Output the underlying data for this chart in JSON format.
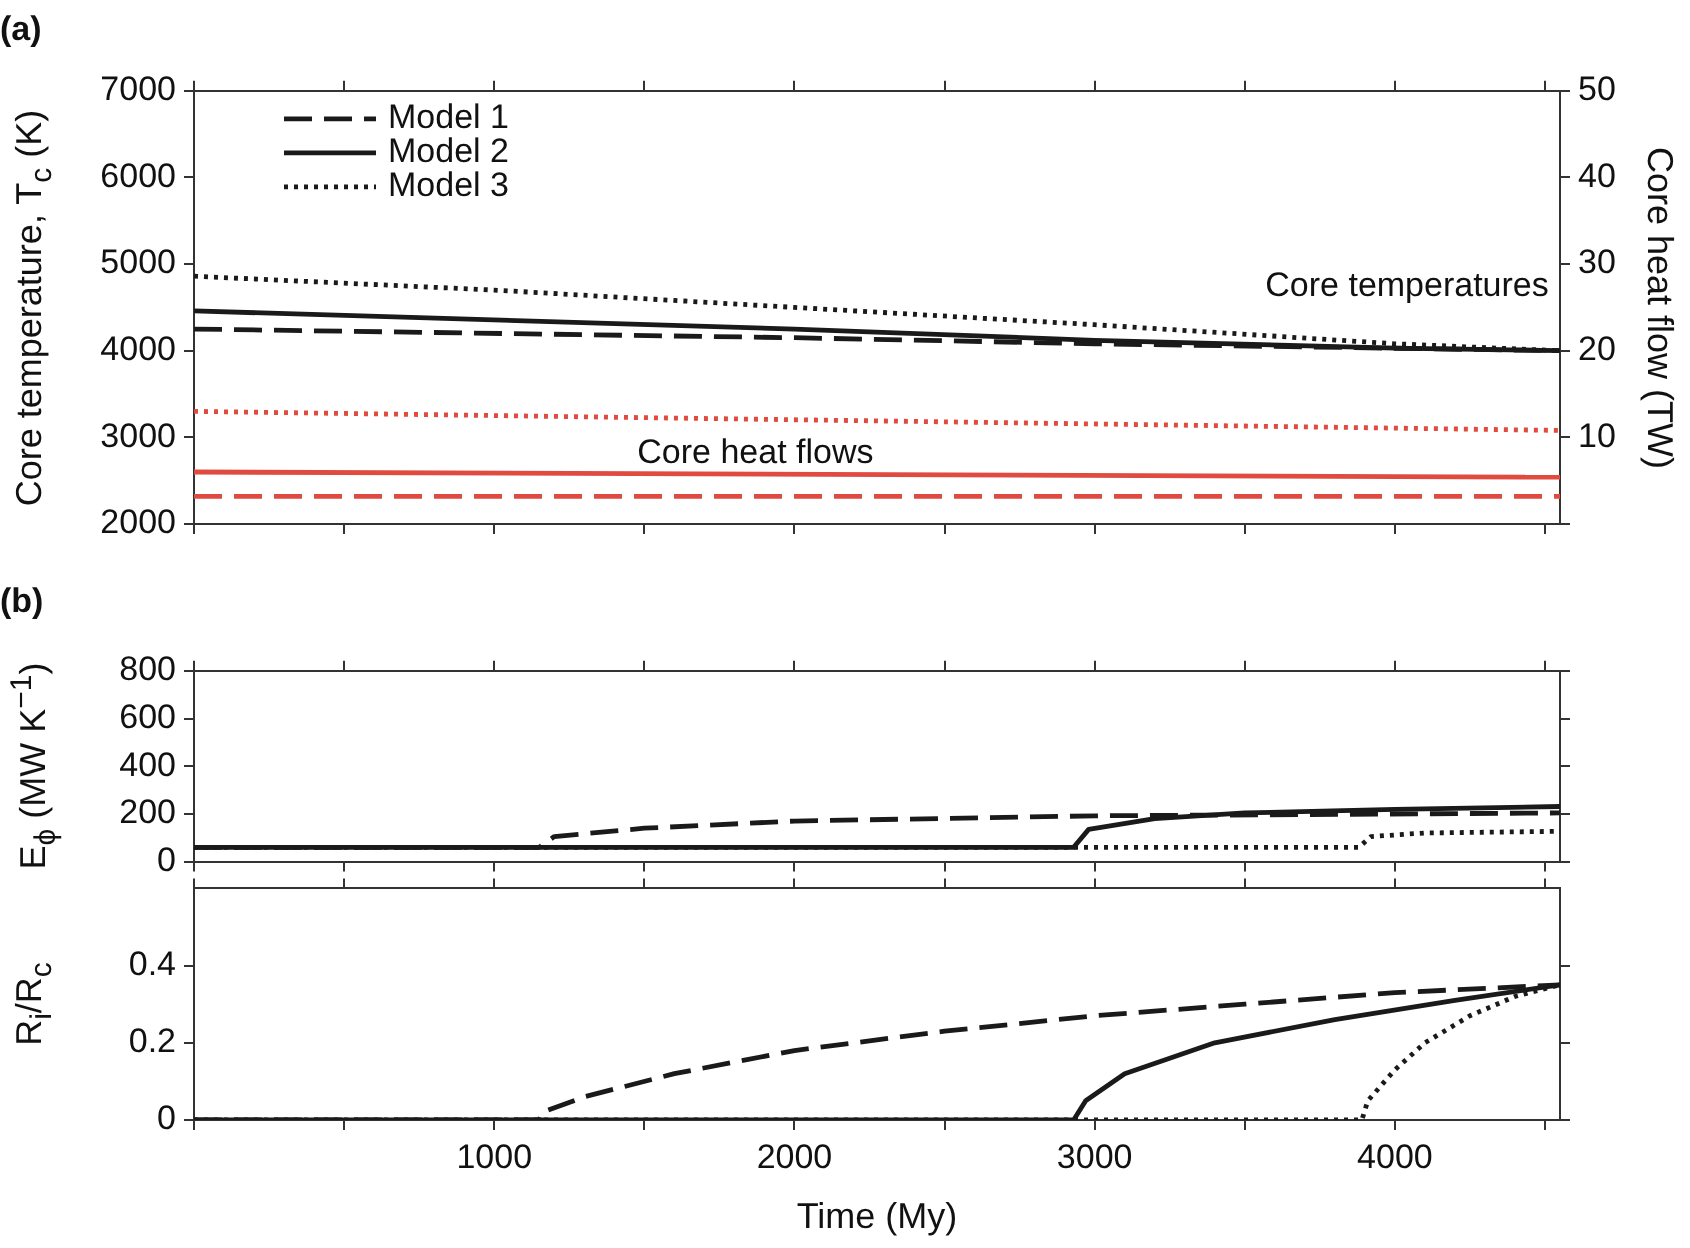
{
  "chart_data": [
    {
      "type": "line",
      "title": "(a)",
      "ylabel": "Core temperature, T$_{c}$ (K)",
      "y2label": "Core heat flow (TW)",
      "tick_labels": "y",
      "xlim": [
        0,
        4550
      ],
      "xticks": [
        {
          "value": 0,
          "label": null
        },
        {
          "value": 500,
          "label": null
        },
        1000,
        {
          "value": 1500,
          "label": null
        },
        2000,
        {
          "value": 2500,
          "label": null
        },
        3000,
        {
          "value": 3500,
          "label": null
        },
        4000,
        {
          "value": 4500,
          "label": null
        }
      ],
      "ylim": [
        2000,
        7000
      ],
      "yticks": [
        2000,
        3000,
        4000,
        5000,
        6000,
        7000
      ],
      "y2lim": [
        0,
        50
      ],
      "y2ticks": [
        {
          "value": 0,
          "label": null
        },
        10,
        20,
        30,
        40,
        50
      ],
      "legend": "top left",
      "marker": "none",
      "grid": false,
      "annotations": [
        "Core temperatures",
        "Core heat flows"
      ],
      "series": [
        {
          "name": "Model 1",
          "color": "#1a1a1a",
          "line_style": "dashed",
          "x": [
            0,
            2000,
            3000,
            4550
          ],
          "values": [
            4250,
            4150,
            4080,
            4000
          ]
        },
        {
          "name": "Model 2",
          "color": "#1a1a1a",
          "line_style": "solid",
          "x": [
            0,
            2000,
            3000,
            4000,
            4550
          ],
          "values": [
            4460,
            4250,
            4120,
            4030,
            4000
          ]
        },
        {
          "name": "Model 3",
          "color": "#1a1a1a",
          "line_style": "dotted",
          "x": [
            0,
            1000,
            2000,
            3000,
            4000,
            4550
          ],
          "values": [
            4860,
            4700,
            4500,
            4300,
            4080,
            4000
          ]
        },
        {
          "color": "#e04a3f",
          "line_style": "dashed",
          "axis": "y2",
          "x": [
            0,
            4550
          ],
          "values": [
            3.2,
            3.2
          ]
        },
        {
          "color": "#e04a3f",
          "line_style": "solid",
          "axis": "y2",
          "x": [
            0,
            4550
          ],
          "values": [
            6.0,
            5.4
          ]
        },
        {
          "color": "#e04a3f",
          "line_style": "dotted",
          "axis": "y2",
          "x": [
            0,
            4550
          ],
          "values": [
            13.0,
            10.8
          ]
        }
      ]
    },
    {
      "type": "line",
      "title": "(b)",
      "ylabel": "E$_{ϕ}$ (MW K$^{−1}$)",
      "tick_labels": "y",
      "xlim": [
        0,
        4550
      ],
      "xticks": [
        {
          "value": 0,
          "label": null
        },
        {
          "value": 500,
          "label": null
        },
        1000,
        {
          "value": 1500,
          "label": null
        },
        2000,
        {
          "value": 2500,
          "label": null
        },
        3000,
        {
          "value": 3500,
          "label": null
        },
        4000,
        {
          "value": 4500,
          "label": null
        }
      ],
      "ylim": [
        0,
        800
      ],
      "yticks": [
        0,
        200,
        400,
        600,
        800
      ],
      "marker": "none",
      "grid": false,
      "series": [
        {
          "color": "#1a1a1a",
          "line_style": "dashed",
          "x": [
            0,
            1150,
            1200,
            1500,
            2000,
            3000,
            4550
          ],
          "values": [
            60,
            60,
            105,
            140,
            170,
            192,
            204
          ]
        },
        {
          "color": "#1a1a1a",
          "line_style": "solid",
          "x": [
            0,
            2930,
            2980,
            3200,
            3500,
            4000,
            4550
          ],
          "values": [
            60,
            60,
            135,
            180,
            204,
            219,
            231
          ]
        },
        {
          "color": "#1a1a1a",
          "line_style": "dotted",
          "x": [
            0,
            3880,
            3920,
            4100,
            4550
          ],
          "values": [
            60,
            60,
            105,
            120,
            127
          ]
        }
      ]
    },
    {
      "type": "line",
      "ylabel": "R$_{i}$/R$_{c}$",
      "xlabel": "Time (My)",
      "xlim": [
        0,
        4550
      ],
      "xticks": [
        {
          "value": 0,
          "label": null
        },
        {
          "value": 500,
          "label": null
        },
        1000,
        {
          "value": 1500,
          "label": null
        },
        2000,
        {
          "value": 2500,
          "label": null
        },
        3000,
        {
          "value": 3500,
          "label": null
        },
        4000,
        {
          "value": 4500,
          "label": null
        }
      ],
      "ylim": [
        0,
        0.6
      ],
      "yticks": [
        0,
        0.2,
        0.4
      ],
      "marker": "none",
      "grid": false,
      "series": [
        {
          "color": "#1a1a1a",
          "line_style": "dashed",
          "x": [
            0,
            1150,
            1160,
            1300,
            1600,
            2000,
            2500,
            3000,
            3500,
            4000,
            4550
          ],
          "values": [
            0,
            0,
            0.02,
            0.06,
            0.12,
            0.18,
            0.23,
            0.27,
            0.3,
            0.33,
            0.35
          ]
        },
        {
          "color": "#1a1a1a",
          "line_style": "solid",
          "x": [
            0,
            2930,
            2970,
            3100,
            3400,
            3800,
            4200,
            4550
          ],
          "values": [
            0,
            0,
            0.05,
            0.12,
            0.2,
            0.26,
            0.31,
            0.35
          ]
        },
        {
          "color": "#1a1a1a",
          "line_style": "dotted",
          "x": [
            0,
            3890,
            3910,
            4000,
            4100,
            4250,
            4400,
            4550
          ],
          "values": [
            0,
            0,
            0.05,
            0.13,
            0.2,
            0.27,
            0.32,
            0.35
          ]
        }
      ]
    }
  ]
}
